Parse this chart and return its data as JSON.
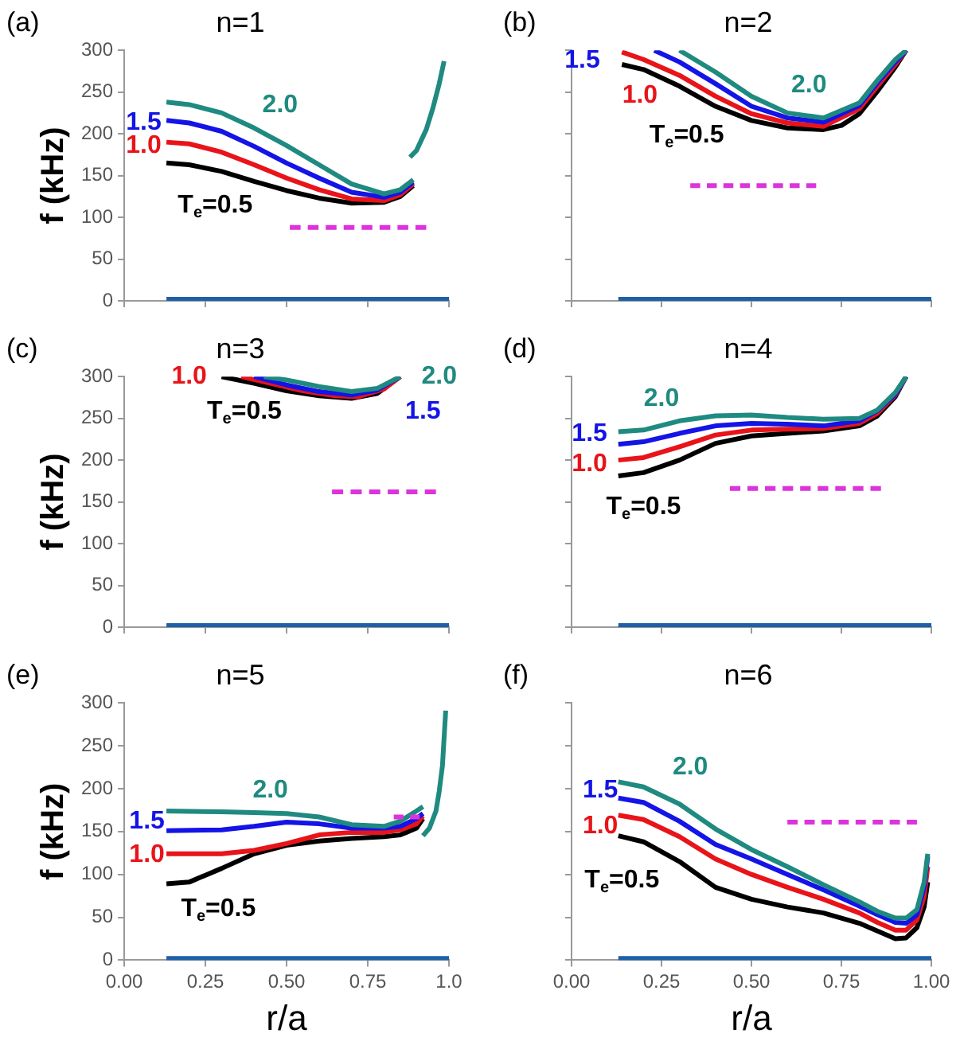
{
  "chart_data": [
    {
      "type": "line",
      "title": "n=1",
      "ylabel": "f (kHz)",
      "annotations": [
        "(a)"
      ],
      "xlim": [
        0,
        1
      ],
      "xticks": [
        0,
        0.25,
        0.5,
        0.75,
        1
      ],
      "ylim": [
        0,
        300
      ],
      "yticks": [
        0,
        50,
        100,
        150,
        200,
        250,
        300
      ],
      "tick_labels": "y",
      "grid": false,
      "marker": "none",
      "series": [
        {
          "name": "T$_{e}$=0.5",
          "color": "#000000",
          "x": [
            0.13,
            0.2,
            0.3,
            0.4,
            0.5,
            0.6,
            0.7,
            0.8,
            0.85,
            0.89
          ],
          "values": [
            165,
            163,
            155,
            143,
            132,
            123,
            117,
            118,
            125,
            138
          ]
        },
        {
          "name": "1.0",
          "color": "#e8141a",
          "x": [
            0.13,
            0.2,
            0.3,
            0.4,
            0.5,
            0.6,
            0.7,
            0.8,
            0.85,
            0.89
          ],
          "values": [
            190,
            188,
            178,
            163,
            147,
            133,
            122,
            120,
            127,
            140
          ]
        },
        {
          "name": "1.5",
          "color": "#1414e6",
          "x": [
            0.13,
            0.2,
            0.3,
            0.4,
            0.5,
            0.6,
            0.7,
            0.8,
            0.85,
            0.89
          ],
          "values": [
            216,
            213,
            203,
            185,
            165,
            147,
            130,
            124,
            130,
            142
          ]
        },
        {
          "name": "2.0",
          "color": "#1f8a80",
          "x": [
            0.13,
            0.2,
            0.3,
            0.4,
            0.5,
            0.6,
            0.7,
            0.8,
            0.85,
            0.89,
            null,
            0.88,
            0.9,
            0.93,
            0.95,
            0.97,
            0.985
          ],
          "values": [
            238,
            235,
            225,
            207,
            186,
            163,
            140,
            128,
            133,
            145,
            null,
            172,
            180,
            205,
            230,
            260,
            287
          ]
        },
        {
          "color": "#dd33dd",
          "line_style": "dashed",
          "x": [
            0.51,
            0.93
          ],
          "values": [
            88,
            88
          ]
        },
        {
          "color": "#1f5fa8",
          "x": [
            0.13,
            1.0
          ],
          "values": [
            2,
            2
          ]
        }
      ]
    },
    {
      "type": "line",
      "title": "n=2",
      "annotations": [
        "(b)"
      ],
      "xlim": [
        0,
        1
      ],
      "xticks": [
        0,
        0.25,
        0.5,
        0.75,
        1
      ],
      "ylim": [
        0,
        300
      ],
      "yticks": [
        0,
        50,
        100,
        150,
        200,
        250,
        300
      ],
      "tick_labels": false,
      "grid": false,
      "marker": "none",
      "series": [
        {
          "name": "T$_{e}$=0.5",
          "color": "#000000",
          "x": [
            0.14,
            0.2,
            0.3,
            0.4,
            0.5,
            0.6,
            0.7,
            0.75,
            0.8,
            0.85,
            0.9,
            0.93
          ],
          "values": [
            283,
            277,
            257,
            233,
            216,
            207,
            205,
            210,
            224,
            251,
            280,
            300
          ]
        },
        {
          "name": "1.0",
          "color": "#e8141a",
          "x": [
            0.14,
            0.2,
            0.3,
            0.4,
            0.5,
            0.6,
            0.7,
            0.8,
            0.85,
            0.9,
            0.93
          ],
          "values": [
            298,
            289,
            270,
            245,
            224,
            213,
            209,
            230,
            257,
            283,
            300
          ]
        },
        {
          "name": "1.5",
          "color": "#1414e6",
          "x": [
            0.23,
            0.3,
            0.4,
            0.5,
            0.6,
            0.7,
            0.8,
            0.85,
            0.9,
            0.93
          ],
          "values": [
            300,
            286,
            260,
            233,
            219,
            214,
            234,
            261,
            286,
            300
          ]
        },
        {
          "name": "2.0",
          "color": "#1f8a80",
          "x": [
            0.3,
            0.4,
            0.5,
            0.6,
            0.7,
            0.8,
            0.85,
            0.9,
            0.93
          ],
          "values": [
            300,
            274,
            245,
            225,
            219,
            237,
            264,
            289,
            300
          ]
        },
        {
          "color": "#dd33dd",
          "line_style": "dashed",
          "x": [
            0.33,
            0.68
          ],
          "values": [
            138,
            138
          ]
        },
        {
          "color": "#1f5fa8",
          "x": [
            0.13,
            1.0
          ],
          "values": [
            2,
            2
          ]
        }
      ]
    },
    {
      "type": "line",
      "title": "n=3",
      "ylabel": "f (kHz)",
      "annotations": [
        "(c)"
      ],
      "xlim": [
        0,
        1
      ],
      "xticks": [
        0,
        0.25,
        0.5,
        0.75,
        1
      ],
      "ylim": [
        0,
        300
      ],
      "yticks": [
        0,
        50,
        100,
        150,
        200,
        250,
        300
      ],
      "tick_labels": "y",
      "grid": false,
      "marker": "none",
      "series": [
        {
          "name": "T$_{e}$=0.5",
          "color": "#000000",
          "x": [
            0.3,
            0.4,
            0.5,
            0.6,
            0.7,
            0.78,
            0.85
          ],
          "values": [
            300,
            292,
            283,
            277,
            274,
            280,
            300
          ]
        },
        {
          "name": "1.0",
          "color": "#e8141a",
          "x": [
            0.36,
            0.45,
            0.55,
            0.65,
            0.72,
            0.8,
            0.85
          ],
          "values": [
            300,
            292,
            283,
            277,
            276,
            285,
            300
          ]
        },
        {
          "name": "1.5",
          "color": "#1414e6",
          "x": [
            0.4,
            0.5,
            0.6,
            0.7,
            0.78,
            0.85
          ],
          "values": [
            300,
            290,
            282,
            278,
            284,
            300
          ]
        },
        {
          "name": "2.0",
          "color": "#1f8a80",
          "x": [
            0.43,
            0.5,
            0.6,
            0.7,
            0.78,
            0.85
          ],
          "values": [
            300,
            296,
            288,
            282,
            286,
            300
          ]
        },
        {
          "color": "#dd33dd",
          "line_style": "dashed",
          "x": [
            0.64,
            0.96
          ],
          "values": [
            162,
            162
          ]
        },
        {
          "color": "#1f5fa8",
          "x": [
            0.13,
            1.0
          ],
          "values": [
            2,
            2
          ]
        }
      ]
    },
    {
      "type": "line",
      "title": "n=4",
      "annotations": [
        "(d)"
      ],
      "xlim": [
        0,
        1
      ],
      "xticks": [
        0,
        0.25,
        0.5,
        0.75,
        1
      ],
      "ylim": [
        0,
        300
      ],
      "yticks": [
        0,
        50,
        100,
        150,
        200,
        250,
        300
      ],
      "tick_labels": false,
      "grid": false,
      "marker": "none",
      "series": [
        {
          "name": "T$_{e}$=0.5",
          "color": "#000000",
          "x": [
            0.13,
            0.2,
            0.3,
            0.4,
            0.5,
            0.6,
            0.7,
            0.8,
            0.85,
            0.9,
            0.93
          ],
          "values": [
            181,
            185,
            200,
            220,
            229,
            232,
            235,
            241,
            253,
            276,
            300
          ]
        },
        {
          "name": "1.0",
          "color": "#e8141a",
          "x": [
            0.13,
            0.2,
            0.3,
            0.4,
            0.5,
            0.6,
            0.7,
            0.8,
            0.85,
            0.9,
            0.93
          ],
          "values": [
            200,
            203,
            216,
            230,
            236,
            237,
            238,
            244,
            256,
            278,
            300
          ]
        },
        {
          "name": "1.5",
          "color": "#1414e6",
          "x": [
            0.13,
            0.2,
            0.3,
            0.4,
            0.5,
            0.6,
            0.7,
            0.8,
            0.85,
            0.9,
            0.93
          ],
          "values": [
            219,
            222,
            232,
            241,
            244,
            243,
            241,
            247,
            259,
            279,
            300
          ]
        },
        {
          "name": "2.0",
          "color": "#1f8a80",
          "x": [
            0.13,
            0.2,
            0.3,
            0.4,
            0.5,
            0.6,
            0.7,
            0.8,
            0.85,
            0.9,
            0.93
          ],
          "values": [
            234,
            236,
            247,
            253,
            254,
            251,
            249,
            250,
            260,
            281,
            300
          ]
        },
        {
          "color": "#dd33dd",
          "line_style": "dashed",
          "x": [
            0.44,
            0.86
          ],
          "values": [
            166,
            166
          ]
        },
        {
          "color": "#1f5fa8",
          "x": [
            0.13,
            1.0
          ],
          "values": [
            2,
            2
          ]
        }
      ]
    },
    {
      "type": "line",
      "title": "n=5",
      "ylabel": "f (kHz)",
      "xlabel": "r/a",
      "annotations": [
        "(e)"
      ],
      "xlim": [
        0,
        1
      ],
      "xticks": [
        {
          "value": 0,
          "label": "0.00"
        },
        {
          "value": 0.25,
          "label": "0.25"
        },
        {
          "value": 0.5,
          "label": "0.50"
        },
        {
          "value": 0.75,
          "label": "0.75"
        },
        {
          "value": 1,
          "label": "1.0"
        }
      ],
      "ylim": [
        0,
        300
      ],
      "yticks": [
        0,
        50,
        100,
        150,
        200,
        250,
        300
      ],
      "grid": false,
      "marker": "none",
      "series": [
        {
          "name": "T$_{e}$=0.5",
          "color": "#000000",
          "x": [
            0.13,
            0.2,
            0.3,
            0.4,
            0.5,
            0.6,
            0.7,
            0.8,
            0.85,
            0.9,
            0.92
          ],
          "values": [
            89,
            91,
            107,
            124,
            134,
            139,
            142,
            144,
            146,
            154,
            165
          ]
        },
        {
          "name": "1.0",
          "color": "#e8141a",
          "x": [
            0.13,
            0.3,
            0.4,
            0.5,
            0.6,
            0.7,
            0.8,
            0.85,
            0.9,
            0.92
          ],
          "values": [
            124,
            124,
            128,
            136,
            146,
            149,
            149,
            152,
            159,
            168
          ]
        },
        {
          "name": "1.5",
          "color": "#1414e6",
          "x": [
            0.13,
            0.3,
            0.4,
            0.5,
            0.6,
            0.7,
            0.8,
            0.85,
            0.9,
            0.92
          ],
          "values": [
            151,
            152,
            156,
            161,
            159,
            154,
            154,
            156,
            165,
            171
          ]
        },
        {
          "name": "2.0",
          "color": "#1f8a80",
          "x": [
            0.13,
            0.3,
            0.4,
            0.5,
            0.6,
            0.7,
            0.8,
            0.85,
            0.9,
            0.92,
            null,
            0.92,
            0.94,
            0.96,
            0.97,
            0.98,
            0.99
          ],
          "values": [
            174,
            173,
            172,
            171,
            167,
            158,
            156,
            162,
            174,
            179,
            null,
            145,
            154,
            174,
            197,
            227,
            291
          ]
        },
        {
          "color": "#dd33dd",
          "line_style": "dashed",
          "x": [
            0.83,
            0.91
          ],
          "values": [
            167,
            167
          ]
        },
        {
          "color": "#1f5fa8",
          "x": [
            0.13,
            1.0
          ],
          "values": [
            2,
            2
          ]
        }
      ]
    },
    {
      "type": "line",
      "title": "n=6",
      "xlabel": "r/a",
      "annotations": [
        "(f)"
      ],
      "xlim": [
        0,
        1
      ],
      "xticks": [
        {
          "value": 0,
          "label": "0.00"
        },
        {
          "value": 0.25,
          "label": "0.25"
        },
        {
          "value": 0.5,
          "label": "0.50"
        },
        {
          "value": 0.75,
          "label": "0.75"
        },
        {
          "value": 1,
          "label": "1.00"
        }
      ],
      "ylim": [
        0,
        300
      ],
      "yticks": [
        0,
        50,
        100,
        150,
        200,
        250,
        300
      ],
      "tick_labels": "x",
      "grid": false,
      "marker": "none",
      "series": [
        {
          "name": "T$_{e}$=0.5",
          "color": "#000000",
          "x": [
            0.13,
            0.2,
            0.3,
            0.4,
            0.5,
            0.6,
            0.7,
            0.8,
            0.85,
            0.9,
            0.93,
            0.96,
            0.98,
            0.99
          ],
          "values": [
            145,
            138,
            115,
            85,
            71,
            62,
            55,
            43,
            34,
            25,
            26,
            38,
            62,
            91
          ]
        },
        {
          "name": "1.0",
          "color": "#e8141a",
          "x": [
            0.13,
            0.2,
            0.3,
            0.4,
            0.5,
            0.6,
            0.7,
            0.8,
            0.85,
            0.9,
            0.93,
            0.96,
            0.98,
            0.99
          ],
          "values": [
            169,
            164,
            144,
            118,
            100,
            85,
            71,
            55,
            44,
            35,
            35,
            47,
            74,
            109
          ]
        },
        {
          "name": "1.5",
          "color": "#1414e6",
          "x": [
            0.13,
            0.2,
            0.3,
            0.4,
            0.5,
            0.6,
            0.7,
            0.8,
            0.85,
            0.9,
            0.93,
            0.96,
            0.98,
            0.99
          ],
          "values": [
            189,
            184,
            162,
            135,
            118,
            100,
            82,
            63,
            53,
            44,
            43,
            53,
            85,
            121
          ]
        },
        {
          "name": "2.0",
          "color": "#1f8a80",
          "x": [
            0.13,
            0.2,
            0.3,
            0.4,
            0.5,
            0.6,
            0.7,
            0.8,
            0.85,
            0.9,
            0.93,
            0.96,
            0.98,
            0.99
          ],
          "values": [
            208,
            202,
            182,
            153,
            129,
            109,
            88,
            68,
            57,
            49,
            49,
            59,
            91,
            124
          ]
        },
        {
          "color": "#dd33dd",
          "line_style": "dashed",
          "x": [
            0.6,
            0.96
          ],
          "values": [
            161,
            161
          ]
        },
        {
          "color": "#1f5fa8",
          "x": [
            0.13,
            1.0
          ],
          "values": [
            2,
            2
          ]
        }
      ]
    }
  ]
}
